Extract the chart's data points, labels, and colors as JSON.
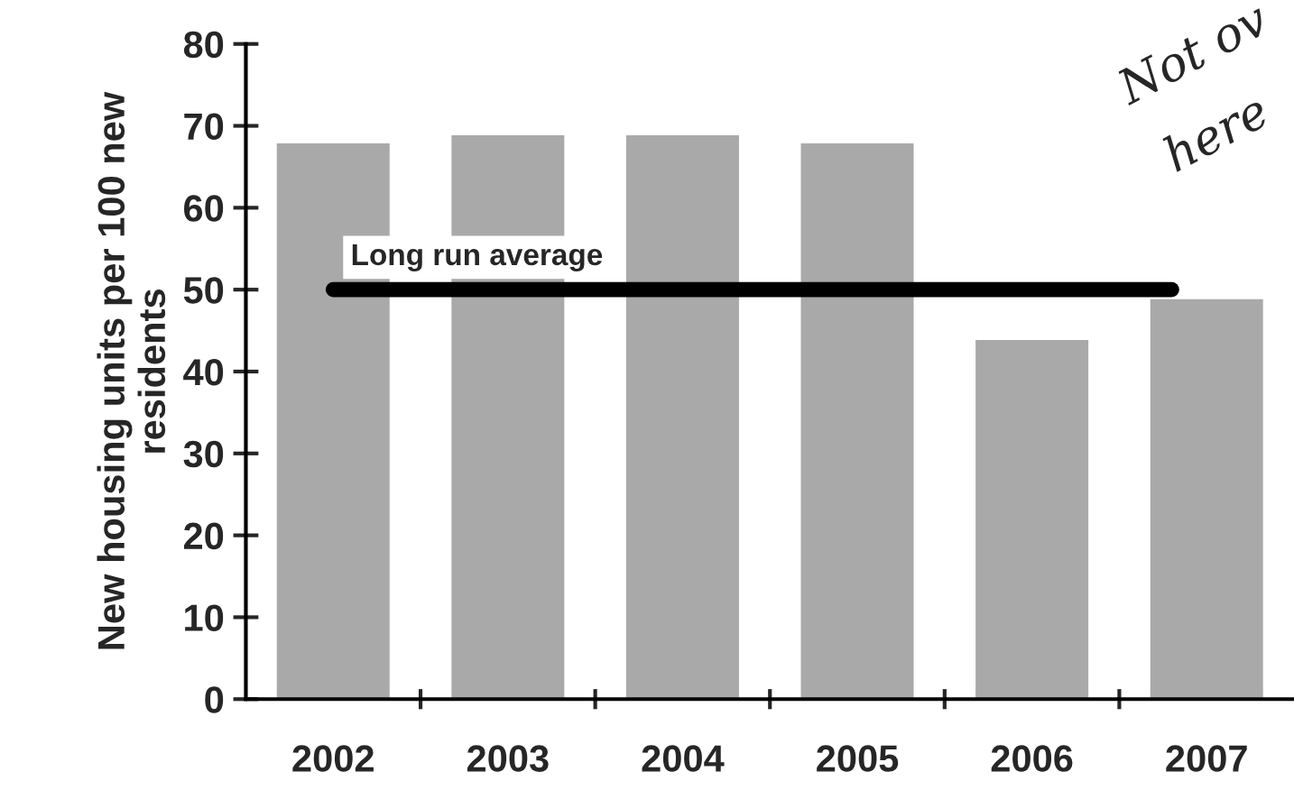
{
  "chart_data": {
    "type": "bar",
    "ylabel": "New housing units per 100 new\nresidents",
    "categories": [
      "2002",
      "2003",
      "2004",
      "2005",
      "2006",
      "2007"
    ],
    "values": [
      68,
      69,
      69,
      68,
      44,
      49
    ],
    "color": "#a9a9a9",
    "ylim": [
      0,
      80
    ],
    "yticks": [
      0,
      10,
      20,
      30,
      40,
      50,
      60,
      70,
      80
    ],
    "grid": false,
    "ref_lines": [
      {
        "axis": "y",
        "value": 50,
        "label": "Long run average",
        "color": "#000000"
      }
    ],
    "annotations": [
      "Not ov",
      "here"
    ]
  }
}
